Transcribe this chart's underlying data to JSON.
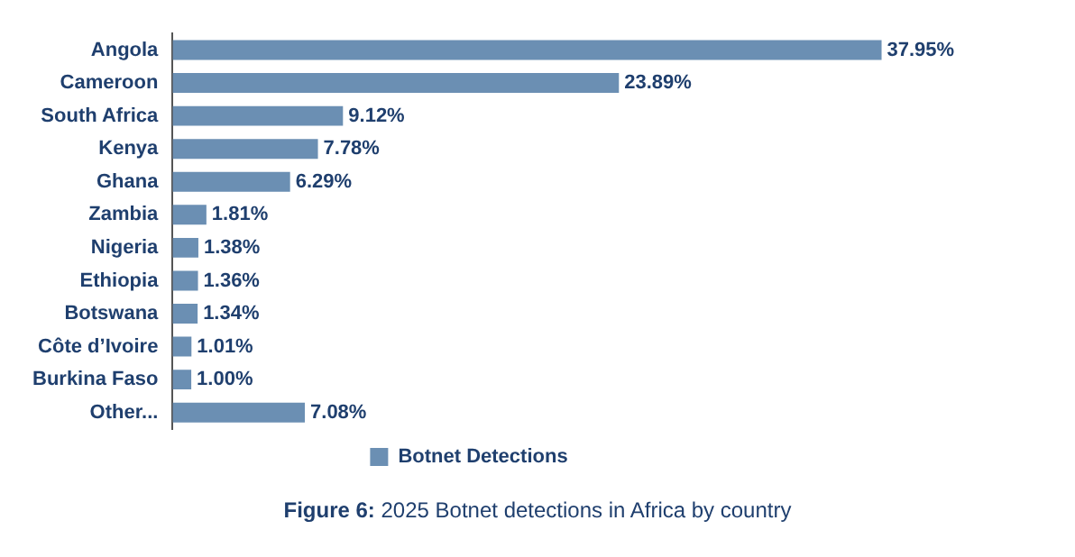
{
  "chart_data": {
    "type": "bar",
    "orientation": "horizontal",
    "categories": [
      "Angola",
      "Cameroon",
      "South Africa",
      "Kenya",
      "Ghana",
      "Zambia",
      "Nigeria",
      "Ethiopia",
      "Botswana",
      "Côte d’Ivoire",
      "Burkina Faso",
      "Other..."
    ],
    "series": [
      {
        "name": "Botnet Detections",
        "color": "#6b8fb3",
        "values": [
          37.95,
          23.89,
          9.12,
          7.78,
          6.29,
          1.81,
          1.38,
          1.36,
          1.34,
          1.01,
          1.0,
          7.08
        ],
        "value_labels": [
          "37.95%",
          "23.89%",
          "9.12%",
          "7.78%",
          "6.29%",
          "1.81%",
          "1.38%",
          "1.36%",
          "1.34%",
          "1.01%",
          "1.00%",
          "7.08%"
        ]
      }
    ],
    "tick_labels": "y",
    "grid": false,
    "legend": "bottom",
    "annotations": [
      "Figure 6: 2025 Botnet detections in Africa by country"
    ]
  }
}
